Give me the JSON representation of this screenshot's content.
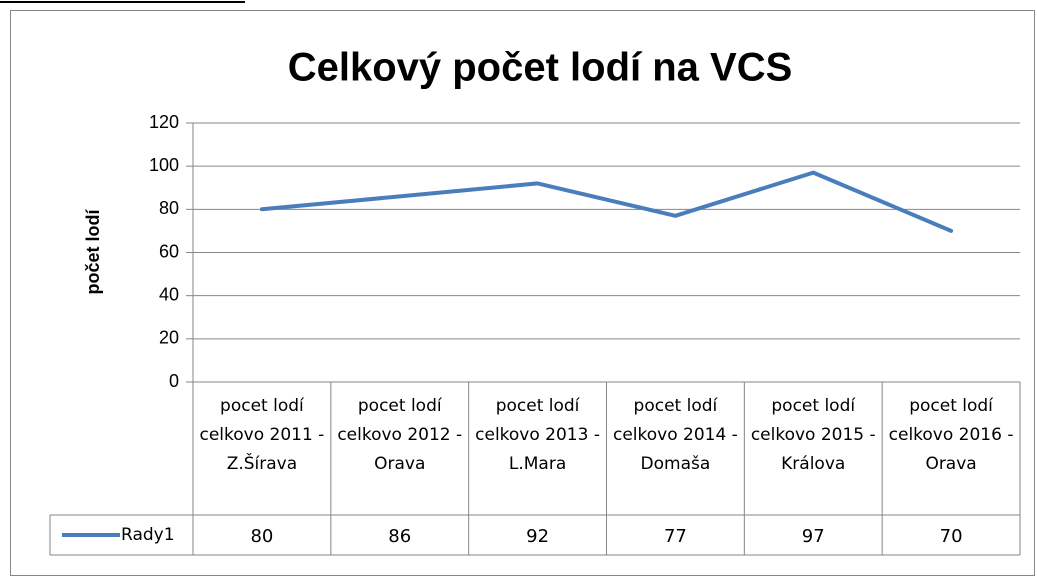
{
  "chart_data": {
    "type": "line",
    "title": "Celkový počet lodí na VCS",
    "y_label": "počet lodí",
    "categories": [
      "pocet lodí celkovo 2011 - Z.Šírava",
      "pocet lodí celkovo 2012 - Orava",
      "pocet lodí celkovo 2013 - L.Mara",
      "pocet lodí celkovo 2014 - Domaša",
      "pocet lodí celkovo 2015 - Králova",
      "pocet lodí celkovo 2016 - Orava"
    ],
    "series": [
      {
        "name": "Rady1",
        "color": "#4a7ebb",
        "values": [
          80,
          86,
          92,
          77,
          97,
          70
        ]
      }
    ],
    "ylim": [
      0,
      120
    ],
    "yticks": [
      0,
      20,
      40,
      60,
      80,
      100,
      120
    ],
    "grid": true,
    "data_table": true
  }
}
